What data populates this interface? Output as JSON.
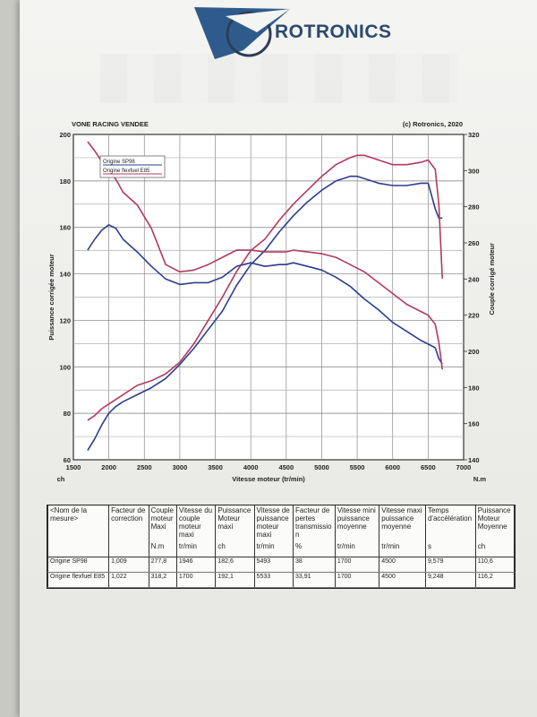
{
  "brand": "ROTRONICS",
  "chart_data": {
    "type": "line",
    "title": "VONE RACING VENDEE",
    "copyright": "(c) Rotronics, 2020",
    "xlabel": "Vitesse moteur (tr/min)",
    "xlim": [
      1500,
      7000
    ],
    "x_ticks": [
      "1500",
      "2000",
      "2500",
      "3000",
      "3500",
      "4000",
      "4500",
      "5000",
      "5500",
      "6000",
      "6500",
      "7000"
    ],
    "ylabel_left": "Puissance corrigée moteur",
    "unit_left": "ch",
    "ylim_left": [
      60,
      200
    ],
    "y_ticks_left": [
      "60",
      "80",
      "100",
      "120",
      "140",
      "160",
      "180",
      "200"
    ],
    "ylabel_right": "Couple corrigé moteur",
    "unit_right": "N.m",
    "ylim_right": [
      140,
      320
    ],
    "y_ticks_right": [
      "140",
      "160",
      "180",
      "200",
      "220",
      "240",
      "260",
      "280",
      "300",
      "320"
    ],
    "legend": [
      {
        "name": "Origine SP98",
        "color": "#2b3f8c"
      },
      {
        "name": "Origine flexfuel E85",
        "color": "#b23a60"
      }
    ],
    "legend_position": "top-left",
    "grid": true,
    "series": [
      {
        "name": "Origine SP98",
        "axis": "left",
        "quantity": "power",
        "color": "#2b3f8c",
        "x": [
          1700,
          1800,
          1900,
          2000,
          2100,
          2200,
          2400,
          2600,
          2800,
          3000,
          3200,
          3400,
          3600,
          3800,
          4000,
          4200,
          4400,
          4600,
          4800,
          5000,
          5200,
          5400,
          5500,
          5600,
          5800,
          6000,
          6200,
          6400,
          6500,
          6600,
          6650,
          6700
        ],
        "y": [
          64,
          69,
          75,
          80,
          83,
          85,
          88,
          91,
          95,
          101,
          108,
          116,
          124,
          135,
          144,
          150,
          158,
          165,
          171,
          176,
          180,
          182,
          182,
          181,
          179,
          178,
          178,
          179,
          179,
          168,
          164,
          164
        ]
      },
      {
        "name": "Origine flexfuel E85",
        "axis": "left",
        "quantity": "power",
        "color": "#b23a60",
        "x": [
          1700,
          1800,
          1900,
          2000,
          2100,
          2200,
          2400,
          2600,
          2800,
          3000,
          3200,
          3400,
          3600,
          3800,
          4000,
          4200,
          4400,
          4600,
          4800,
          5000,
          5200,
          5400,
          5500,
          5600,
          5800,
          6000,
          6200,
          6400,
          6500,
          6600,
          6650,
          6700
        ],
        "y": [
          77,
          79,
          82,
          84,
          86,
          88,
          92,
          94,
          97,
          102,
          110,
          120,
          130,
          141,
          150,
          155,
          163,
          170,
          176,
          182,
          187,
          190,
          191,
          191,
          189,
          187,
          187,
          188,
          189,
          185,
          170,
          138
        ]
      },
      {
        "name": "Origine SP98",
        "axis": "right",
        "quantity": "torque",
        "color": "#2b3f8c",
        "x": [
          1700,
          1800,
          1900,
          2000,
          2100,
          2200,
          2400,
          2600,
          2800,
          3000,
          3200,
          3400,
          3600,
          3800,
          4000,
          4200,
          4400,
          4500,
          4600,
          4800,
          5000,
          5200,
          5400,
          5600,
          5800,
          6000,
          6200,
          6400,
          6500,
          6600,
          6650,
          6700
        ],
        "y": [
          256,
          262,
          267,
          270,
          268,
          262,
          255,
          247,
          240,
          237,
          238,
          238,
          241,
          247,
          249,
          247,
          248,
          248,
          249,
          247,
          245,
          241,
          236,
          229,
          223,
          216,
          211,
          206,
          204,
          202,
          196,
          193
        ]
      },
      {
        "name": "Origine flexfuel E85",
        "axis": "right",
        "quantity": "torque",
        "color": "#b23a60",
        "x": [
          1700,
          1800,
          1900,
          2000,
          2100,
          2200,
          2400,
          2600,
          2800,
          3000,
          3200,
          3400,
          3600,
          3800,
          4000,
          4200,
          4400,
          4500,
          4600,
          4800,
          5000,
          5200,
          5400,
          5600,
          5800,
          6000,
          6200,
          6400,
          6500,
          6600,
          6650,
          6700
        ],
        "y": [
          316,
          311,
          305,
          300,
          295,
          288,
          281,
          268,
          248,
          244,
          245,
          248,
          252,
          256,
          256,
          255,
          255,
          255,
          256,
          255,
          254,
          252,
          248,
          244,
          238,
          232,
          226,
          222,
          220,
          215,
          205,
          190
        ]
      }
    ]
  },
  "results_table": {
    "headers": [
      [
        "<Nom de la",
        "mesure>"
      ],
      [
        "Facteur de",
        "correction"
      ],
      [
        "Couple",
        "moteur",
        "Maxi"
      ],
      [
        "Vitesse du",
        "couple",
        "moteur",
        "maxi"
      ],
      [
        "Puissance",
        "Moteur",
        "maxi"
      ],
      [
        "Vitesse de",
        "puissance",
        "moteur",
        "maxi"
      ],
      [
        "Facteur de",
        "pertes",
        "transmissio",
        "n"
      ],
      [
        "Vitesse mini",
        "puissance",
        "moyenne"
      ],
      [
        "Vitesse maxi",
        "puissance",
        "moyenne"
      ],
      [
        "Temps",
        "d'accélération"
      ],
      [
        "Puissance",
        "Moteur",
        "Moyenne"
      ]
    ],
    "units": [
      "",
      "",
      "N.m",
      "tr/min",
      "ch",
      "tr/min",
      "%",
      "tr/min",
      "tr/min",
      "s",
      "ch"
    ],
    "rows": [
      [
        "Origine SP98",
        "1,009",
        "277,8",
        "1946",
        "182,6",
        "5493",
        "38",
        "1700",
        "4500",
        "9,579",
        "110,6"
      ],
      [
        "Origine flexfuel E85",
        "1,022",
        "318,2",
        "1700",
        "192,1",
        "5533",
        "33,91",
        "1700",
        "4500",
        "9,248",
        "116,2"
      ]
    ]
  }
}
